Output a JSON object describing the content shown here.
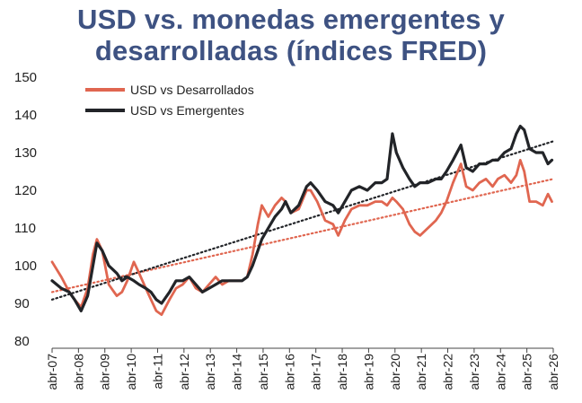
{
  "chart_data": {
    "type": "line",
    "title": "USD vs. monedas emergentes y desarrolladas (índices FRED)",
    "xlabel": "",
    "ylabel": "",
    "ylim": [
      80,
      150
    ],
    "yticks": [
      80,
      90,
      100,
      110,
      120,
      130,
      140,
      150
    ],
    "xlim": [
      2007.25,
      2026.25
    ],
    "xtick_labels": [
      "abr-07",
      "abr-08",
      "abr-09",
      "abr-10",
      "abr-11",
      "abr-12",
      "abr-13",
      "abr-14",
      "abr-15",
      "abr-16",
      "abr-17",
      "abr-18",
      "abr-19",
      "abr-20",
      "abr-21",
      "abr-22",
      "abr-23",
      "abr-24",
      "abr-25",
      "abr-26"
    ],
    "legend_position": "top-left",
    "series": [
      {
        "name": "USD vs Desarrollados",
        "color": "#e06650",
        "points": [
          [
            2007.25,
            101
          ],
          [
            2007.6,
            97
          ],
          [
            2007.9,
            93
          ],
          [
            2008.1,
            91
          ],
          [
            2008.35,
            89
          ],
          [
            2008.6,
            94
          ],
          [
            2008.8,
            103
          ],
          [
            2008.95,
            107
          ],
          [
            2009.15,
            104
          ],
          [
            2009.4,
            95
          ],
          [
            2009.7,
            92
          ],
          [
            2009.9,
            93
          ],
          [
            2010.1,
            96
          ],
          [
            2010.35,
            101
          ],
          [
            2010.55,
            98
          ],
          [
            2010.8,
            94
          ],
          [
            2011.0,
            91
          ],
          [
            2011.2,
            88
          ],
          [
            2011.4,
            87
          ],
          [
            2011.7,
            91
          ],
          [
            2011.95,
            94
          ],
          [
            2012.2,
            95
          ],
          [
            2012.45,
            97
          ],
          [
            2012.7,
            94
          ],
          [
            2012.95,
            93
          ],
          [
            2013.2,
            95
          ],
          [
            2013.45,
            97
          ],
          [
            2013.7,
            95
          ],
          [
            2013.95,
            96
          ],
          [
            2014.2,
            96
          ],
          [
            2014.45,
            96
          ],
          [
            2014.65,
            97
          ],
          [
            2014.85,
            103
          ],
          [
            2015.05,
            111
          ],
          [
            2015.2,
            116
          ],
          [
            2015.45,
            113
          ],
          [
            2015.7,
            116
          ],
          [
            2015.95,
            118
          ],
          [
            2016.1,
            117
          ],
          [
            2016.3,
            114
          ],
          [
            2016.6,
            115
          ],
          [
            2016.9,
            120
          ],
          [
            2017.05,
            120
          ],
          [
            2017.3,
            117
          ],
          [
            2017.6,
            112
          ],
          [
            2017.9,
            111
          ],
          [
            2018.1,
            108
          ],
          [
            2018.35,
            112
          ],
          [
            2018.6,
            115
          ],
          [
            2018.9,
            116
          ],
          [
            2019.2,
            116
          ],
          [
            2019.5,
            117
          ],
          [
            2019.75,
            117
          ],
          [
            2019.95,
            116
          ],
          [
            2020.15,
            118
          ],
          [
            2020.3,
            117
          ],
          [
            2020.55,
            115
          ],
          [
            2020.8,
            111
          ],
          [
            2021.0,
            109
          ],
          [
            2021.2,
            108
          ],
          [
            2021.5,
            110
          ],
          [
            2021.8,
            112
          ],
          [
            2022.0,
            114
          ],
          [
            2022.2,
            117
          ],
          [
            2022.45,
            122
          ],
          [
            2022.75,
            127
          ],
          [
            2022.95,
            121
          ],
          [
            2023.2,
            120
          ],
          [
            2023.45,
            122
          ],
          [
            2023.7,
            123
          ],
          [
            2023.95,
            121
          ],
          [
            2024.15,
            123
          ],
          [
            2024.4,
            124
          ],
          [
            2024.65,
            122
          ],
          [
            2024.85,
            124
          ],
          [
            2025.0,
            128
          ],
          [
            2025.15,
            125
          ],
          [
            2025.35,
            117
          ],
          [
            2025.6,
            117
          ],
          [
            2025.85,
            116
          ],
          [
            2026.05,
            119
          ],
          [
            2026.2,
            117
          ]
        ]
      },
      {
        "name": "USD vs Emergentes",
        "color": "#222428",
        "points": [
          [
            2007.25,
            96
          ],
          [
            2007.6,
            94
          ],
          [
            2007.9,
            93
          ],
          [
            2008.1,
            91
          ],
          [
            2008.35,
            88
          ],
          [
            2008.6,
            92
          ],
          [
            2008.8,
            100
          ],
          [
            2008.95,
            106
          ],
          [
            2009.15,
            104
          ],
          [
            2009.4,
            100
          ],
          [
            2009.7,
            98
          ],
          [
            2009.9,
            96
          ],
          [
            2010.1,
            97
          ],
          [
            2010.35,
            96
          ],
          [
            2010.55,
            95
          ],
          [
            2010.8,
            94
          ],
          [
            2011.0,
            93
          ],
          [
            2011.2,
            91
          ],
          [
            2011.4,
            90
          ],
          [
            2011.7,
            93
          ],
          [
            2011.95,
            96
          ],
          [
            2012.2,
            96
          ],
          [
            2012.45,
            97
          ],
          [
            2012.7,
            95
          ],
          [
            2012.95,
            93
          ],
          [
            2013.2,
            94
          ],
          [
            2013.45,
            95
          ],
          [
            2013.7,
            96
          ],
          [
            2013.95,
            96
          ],
          [
            2014.2,
            96
          ],
          [
            2014.45,
            96
          ],
          [
            2014.65,
            97
          ],
          [
            2014.85,
            100
          ],
          [
            2015.05,
            104
          ],
          [
            2015.2,
            107
          ],
          [
            2015.45,
            110
          ],
          [
            2015.7,
            113
          ],
          [
            2015.95,
            115
          ],
          [
            2016.1,
            117
          ],
          [
            2016.3,
            114
          ],
          [
            2016.6,
            116
          ],
          [
            2016.9,
            121
          ],
          [
            2017.05,
            122
          ],
          [
            2017.3,
            120
          ],
          [
            2017.6,
            117
          ],
          [
            2017.9,
            116
          ],
          [
            2018.1,
            114
          ],
          [
            2018.35,
            117
          ],
          [
            2018.6,
            120
          ],
          [
            2018.9,
            121
          ],
          [
            2019.2,
            120
          ],
          [
            2019.5,
            122
          ],
          [
            2019.75,
            122
          ],
          [
            2019.95,
            123
          ],
          [
            2020.15,
            135
          ],
          [
            2020.3,
            130
          ],
          [
            2020.55,
            126
          ],
          [
            2020.8,
            123
          ],
          [
            2021.0,
            121
          ],
          [
            2021.2,
            122
          ],
          [
            2021.5,
            122
          ],
          [
            2021.8,
            123
          ],
          [
            2022.0,
            123
          ],
          [
            2022.2,
            125
          ],
          [
            2022.45,
            128
          ],
          [
            2022.75,
            132
          ],
          [
            2022.95,
            126
          ],
          [
            2023.2,
            125
          ],
          [
            2023.45,
            127
          ],
          [
            2023.7,
            127
          ],
          [
            2023.95,
            128
          ],
          [
            2024.15,
            128
          ],
          [
            2024.4,
            130
          ],
          [
            2024.65,
            131
          ],
          [
            2024.85,
            135
          ],
          [
            2025.0,
            137
          ],
          [
            2025.15,
            136
          ],
          [
            2025.35,
            131
          ],
          [
            2025.6,
            130
          ],
          [
            2025.85,
            130
          ],
          [
            2026.05,
            127
          ],
          [
            2026.2,
            128
          ]
        ]
      }
    ],
    "trendlines": [
      {
        "series": "USD vs Desarrollados",
        "color": "#e06650",
        "style": "dotted",
        "start": [
          2007.25,
          93
        ],
        "end": [
          2026.25,
          123
        ]
      },
      {
        "series": "USD vs Emergentes",
        "color": "#222428",
        "style": "dotted",
        "start": [
          2007.25,
          91
        ],
        "end": [
          2026.25,
          133
        ]
      }
    ]
  }
}
